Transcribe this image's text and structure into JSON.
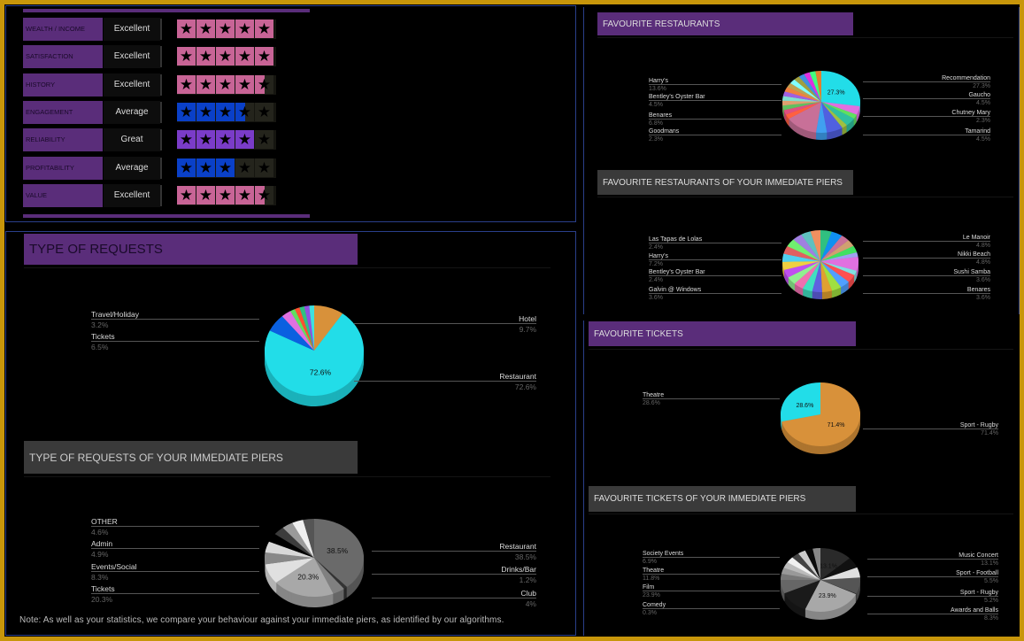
{
  "colors": {
    "frame": "#c8960a",
    "purple": "#5a2d7a",
    "pink_star": "#c86496",
    "blue_star": "#0a40c8",
    "violet_star": "#7a3cc8",
    "empty_star": "#24241c"
  },
  "ratings": [
    {
      "label": "WEALTH / INCOME",
      "value": "Excellent",
      "stars": 5,
      "color": "#c86496"
    },
    {
      "label": "SATISFACTION",
      "value": "Excellent",
      "stars": 5,
      "color": "#c86496"
    },
    {
      "label": "HISTORY",
      "value": "Excellent",
      "stars": 4.5,
      "color": "#c86496"
    },
    {
      "label": "ENGAGEMENT",
      "value": "Average",
      "stars": 3.5,
      "color": "#0a40c8"
    },
    {
      "label": "RELIABILITY",
      "value": "Great",
      "stars": 4,
      "color": "#7a3cc8"
    },
    {
      "label": "PROFITABILITY",
      "value": "Average",
      "stars": 3,
      "color": "#0a40c8"
    },
    {
      "label": "VALUE",
      "value": "Excellent",
      "stars": 4.5,
      "color": "#c86496"
    }
  ],
  "titles": {
    "requests": "TYPE OF REQUESTS",
    "requests_piers": "TYPE OF REQUESTS OF YOUR IMMEDIATE PIERS",
    "restaurants": "FAVOURITE RESTAURANTS",
    "restaurants_piers": "FAVOURITE RESTAURANTS OF YOUR IMMEDIATE PIERS",
    "tickets": "FAVOURITE TICKETS",
    "tickets_piers": "FAVOURITE TICKETS OF YOUR IMMEDIATE PIERS"
  },
  "note": "Note: As well as your statistics, we compare your behaviour against your immediate piers, as identified by our algorithms.",
  "chart_data": [
    {
      "id": "requests",
      "type": "pie",
      "title": "TYPE OF REQUESTS",
      "slices": [
        {
          "label": "Hotel",
          "value": 9.7,
          "color": "#d8913a",
          "side": "right"
        },
        {
          "label": "Restaurant",
          "value": 72.6,
          "color": "#22dde8",
          "side": "right",
          "inner_label": "72.6%"
        },
        {
          "label": "Tickets",
          "value": 6.5,
          "color": "#0a60e0",
          "side": "left"
        },
        {
          "label": "Travel/Holiday",
          "value": 3.2,
          "color": "#e070e0",
          "side": "left"
        }
      ],
      "other_colors": [
        "#60e060",
        "#ff5030",
        "#30c080",
        "#9050e0",
        "#40e0e0"
      ]
    },
    {
      "id": "requests_piers",
      "type": "pie",
      "title": "TYPE OF REQUESTS OF YOUR IMMEDIATE PIERS",
      "slices": [
        {
          "label": "Restaurant",
          "value": 38.5,
          "color": "#6a6a6a",
          "side": "right",
          "inner_label": "38.5%"
        },
        {
          "label": "Drinks/Bar",
          "value": 1.2,
          "color": "#333333",
          "side": "right"
        },
        {
          "label": "Club",
          "value": 4,
          "color": "#808080",
          "side": "right"
        },
        {
          "label": "Tickets",
          "value": 20.3,
          "color": "#a8a8a8",
          "side": "left",
          "inner_label": "20.3%"
        },
        {
          "label": "Events/Social",
          "value": 8.3,
          "color": "#e0e0e0",
          "side": "left"
        },
        {
          "label": "Admin",
          "value": 4.9,
          "color": "#888888",
          "side": "left"
        },
        {
          "label": "OTHER",
          "value": 4.6,
          "color": "#d8d8d8",
          "side": "left"
        }
      ],
      "other_colors": [
        "#000000",
        "#3c3c3c",
        "#9a9a9a",
        "#f0f0f0",
        "#555555"
      ]
    },
    {
      "id": "restaurants",
      "type": "pie",
      "title": "FAVOURITE RESTAURANTS",
      "slices": [
        {
          "label": "Recommendation",
          "value": 27.3,
          "color": "#22dde8",
          "side": "right",
          "inner_label": "27.3%"
        },
        {
          "label": "Gaucho",
          "value": 4.5,
          "color": "#e070e0",
          "side": "right"
        },
        {
          "label": "Chutney Mary",
          "value": 2.3,
          "color": "#60e060",
          "side": "right"
        },
        {
          "label": "Tamarind",
          "value": 4.5,
          "color": "#30c0a0",
          "side": "right"
        },
        {
          "label": "Goodmans",
          "value": 2.3,
          "color": "#a0c040",
          "side": "left"
        },
        {
          "label": "Benares",
          "value": 6.8,
          "color": "#5060e0",
          "side": "left"
        },
        {
          "label": "Bentley's Oyster Bar",
          "value": 4.5,
          "color": "#40a0f0",
          "side": "left"
        },
        {
          "label": "Harry's",
          "value": 13.6,
          "color": "#c87098",
          "side": "left"
        }
      ],
      "other_colors": [
        "#ff6040",
        "#e05080",
        "#60c060",
        "#e0a070",
        "#80e0d0",
        "#a060e0",
        "#f08040",
        "#c0a050",
        "#80ffff",
        "#a0a040",
        "#4090e0",
        "#e030e0",
        "#40ff80",
        "#e08030"
      ]
    },
    {
      "id": "restaurants_piers",
      "type": "pie",
      "title": "FAVOURITE RESTAURANTS OF YOUR IMMEDIATE PIERS",
      "slices": [
        {
          "label": "Le Manoir",
          "value": 4.8,
          "color": "#30c080",
          "side": "right"
        },
        {
          "label": "Nikki Beach",
          "value": 4.8,
          "color": "#1090f0",
          "side": "right"
        },
        {
          "label": "Sushi Samba",
          "value": 3.6,
          "color": "#c87098",
          "side": "right"
        },
        {
          "label": "Benares",
          "value": 3.6,
          "color": "#d0a070",
          "side": "right"
        },
        {
          "label": "Galvin @ Windows",
          "value": 3.6,
          "color": "#40e060",
          "side": "left"
        },
        {
          "label": "Bentley's Oyster Bar",
          "value": 2.4,
          "color": "#a0a0f0",
          "side": "left"
        },
        {
          "label": "Harry's",
          "value": 7.2,
          "color": "#e070e0",
          "side": "left"
        },
        {
          "label": "Las Tapas de Lolas",
          "value": 2.4,
          "color": "#80e0e0",
          "side": "left"
        }
      ],
      "other_colors": [
        "#ff5050",
        "#50a0ff",
        "#a0e040",
        "#e0a030",
        "#6060e0",
        "#40e0c0",
        "#f070b0",
        "#90f090",
        "#c050f0",
        "#f0d040",
        "#50d0f0",
        "#e06060",
        "#70f070",
        "#a080e0",
        "#60c0c0",
        "#f09060"
      ]
    },
    {
      "id": "tickets",
      "type": "pie",
      "title": "FAVOURITE TICKETS",
      "slices": [
        {
          "label": "Sport - Rugby",
          "value": 71.4,
          "color": "#d8913a",
          "side": "right",
          "inner_label": "71.4%"
        },
        {
          "label": "Theatre",
          "value": 28.6,
          "color": "#22dde8",
          "side": "left",
          "inner_label": "28.6%"
        }
      ],
      "other_colors": []
    },
    {
      "id": "tickets_piers",
      "type": "pie",
      "title": "FAVOURITE TICKETS OF YOUR IMMEDIATE PIERS",
      "slices": [
        {
          "label": "Music Concert",
          "value": 13.1,
          "color": "#2a2a2a",
          "side": "right",
          "inner_label": "13.1%"
        },
        {
          "label": "Sport - Football",
          "value": 5.5,
          "color": "#111111",
          "side": "right"
        },
        {
          "label": "Sport - Rugby",
          "value": 5.2,
          "color": "#e0e0e0",
          "side": "right"
        },
        {
          "label": "Awards and Balls",
          "value": 8.3,
          "color": "#555555",
          "side": "right"
        },
        {
          "label": "Comedy",
          "value": 0.3,
          "color": "#222222",
          "side": "left"
        },
        {
          "label": "Film",
          "value": 23.9,
          "color": "#a8a8a8",
          "side": "left",
          "inner_label": "23.9%"
        },
        {
          "label": "Theatre",
          "value": 11.8,
          "color": "#1a1a1a",
          "side": "left"
        },
        {
          "label": "Society Events",
          "value": 6.9,
          "color": "#666666",
          "side": "left"
        }
      ],
      "other_colors": [
        "#777777",
        "#999999",
        "#bbbbbb",
        "#f0f0f0",
        "#444444",
        "#cccccc",
        "#0a0a0a",
        "#888888"
      ]
    }
  ]
}
